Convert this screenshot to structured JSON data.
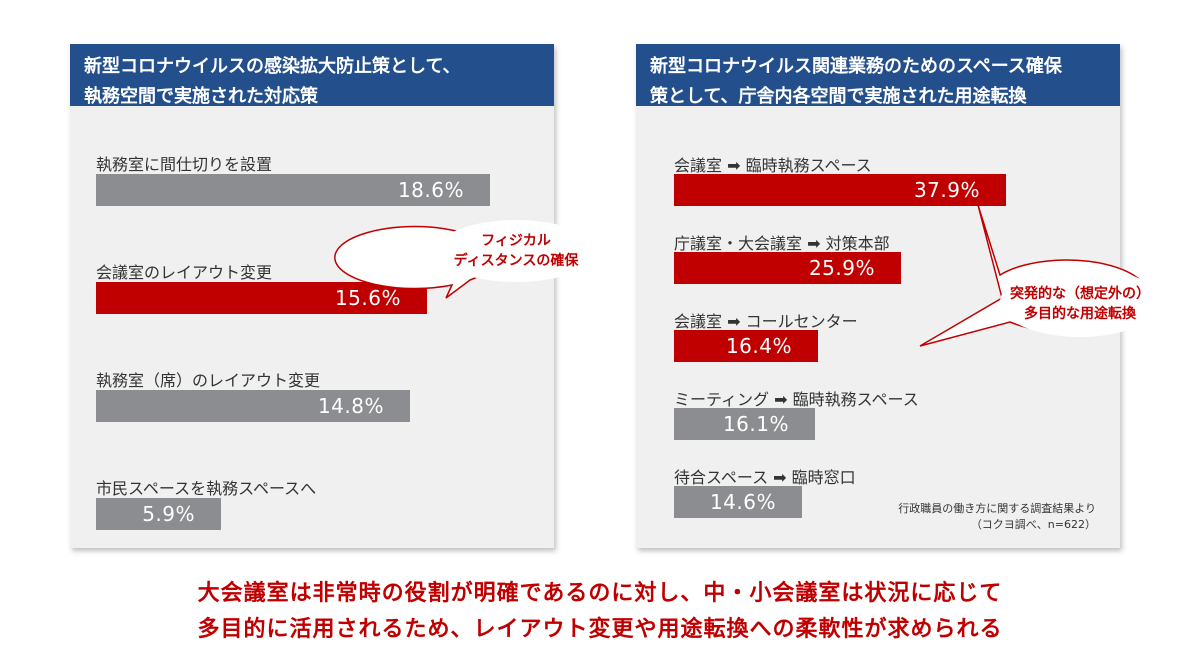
{
  "left_panel": {
    "title_line1": "新型コロナウイルスの感染拡大防止策として、",
    "title_line2": "執務空間で実施された対応策",
    "callout_line1": "フィジカル",
    "callout_line2": "ディスタンスの確保"
  },
  "right_panel": {
    "title_line1": "新型コロナウイルス関連業務のためのスペース確保",
    "title_line2": "策として、庁舎内各空間で実施された用途転換",
    "callout_line1": "突発的な（想定外の）",
    "callout_line2": "多目的な用途転換",
    "source_line1": "行政職員の働き方に関する調査結果より",
    "source_line2": "（コクヨ調べ、n=622）"
  },
  "footer": {
    "line1": "大会議室は非常時の役割が明確であるのに対し、中・小会議室は状況に応じて",
    "line2": "多目的に活用されるため、レイアウト変更や用途転換への柔軟性が求められる"
  },
  "colors": {
    "gray": "#8c8d90",
    "red": "#c00000",
    "header": "#234f8c"
  },
  "chart_data": [
    {
      "type": "bar",
      "title": "新型コロナウイルスの感染拡大防止策として、執務空間で実施された対応策",
      "categories": [
        "執務室に間仕切りを設置",
        "会議室のレイアウト変更",
        "執務室（席）のレイアウト変更",
        "市民スペースを執務スペースへ"
      ],
      "values": [
        18.6,
        15.6,
        14.8,
        5.9
      ],
      "labels": [
        "18.6%",
        "15.6%",
        "14.8%",
        "5.9%"
      ],
      "highlight": [
        false,
        true,
        false,
        false
      ],
      "unit": "%"
    },
    {
      "type": "bar",
      "title": "新型コロナウイルス関連業務のためのスペース確保策として、庁舎内各空間で実施された用途転換",
      "categories": [
        "会議室 ➡ 臨時執務スペース",
        "庁議室・大会議室 ➡ 対策本部",
        "会議室 ➡ コールセンター",
        "ミーティング ➡ 臨時執務スペース",
        "待合スペース ➡ 臨時窓口"
      ],
      "values": [
        37.9,
        25.9,
        16.4,
        16.1,
        14.6
      ],
      "labels": [
        "37.9%",
        "25.9%",
        "16.4%",
        "16.1%",
        "14.6%"
      ],
      "highlight": [
        true,
        true,
        true,
        false,
        false
      ],
      "unit": "%"
    }
  ]
}
